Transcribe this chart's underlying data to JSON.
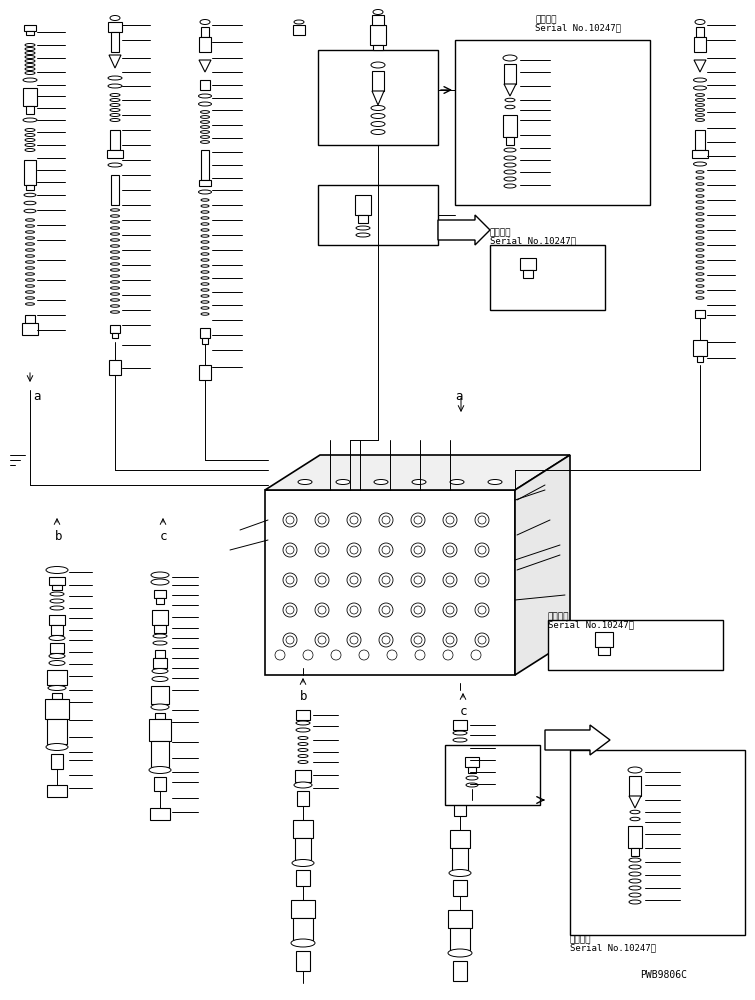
{
  "title": "",
  "background_color": "#ffffff",
  "figsize": [
    7.55,
    10.0
  ],
  "dpi": 100,
  "texts": {
    "serial_top": "適用号機\nSerial No.10247～",
    "serial_mid": "適用号機\nSerial No.10247～",
    "serial_bot1": "適用号機\nSerial No.10247～",
    "serial_bot2": "適用号機\nSerial No.10247～",
    "code": "PWB9806C",
    "label_a1": "a",
    "label_a2": "a",
    "label_b1": "b",
    "label_b2": "b",
    "label_c1": "c",
    "label_c2": "c"
  },
  "line_color": "#000000",
  "box_color": "#000000",
  "arrow_color": "#000000",
  "font_size_serial": 6.5,
  "font_size_label": 9,
  "font_size_code": 7
}
